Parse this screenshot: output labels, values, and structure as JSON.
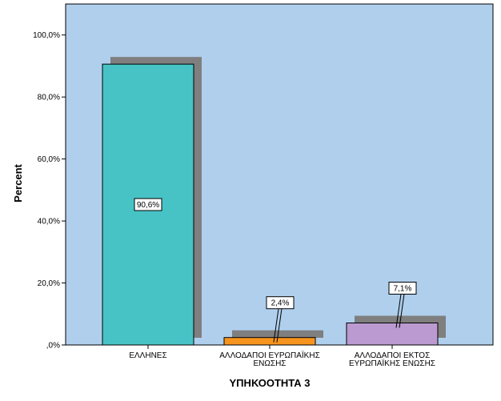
{
  "chart_data": {
    "type": "bar",
    "xlabel": "ΥΠΗΚΟΟΤΗΤΑ 3",
    "ylabel": "Percent",
    "ylim": [
      0,
      110
    ],
    "yticks": [
      0,
      20,
      40,
      60,
      80,
      100
    ],
    "ytick_labels": [
      ",0%",
      "20,0%",
      "40,0%",
      "60,0%",
      "80,0%",
      "100,0%"
    ],
    "categories": [
      [
        "ΕΛΛΗΝΕΣ"
      ],
      [
        "ΑΛΛΟΔΑΠΟΙ ΕΥΡΩΠΑΪΚΗΣ",
        "ΕΝΩΣΗΣ"
      ],
      [
        "ΑΛΛΟΔΑΠΟΙ ΕΚΤΟΣ",
        "ΕΥΡΩΠΑΪΚΗΣ ΕΝΩΣΗΣ"
      ]
    ],
    "values": [
      90.6,
      2.4,
      7.1
    ],
    "data_labels": [
      "90,6%",
      "2,4%",
      "7,1%"
    ],
    "bar_colors": [
      "#47C3C6",
      "#F7941D",
      "#BA9AD0"
    ],
    "plot_background": "#AFCFED",
    "shadow_color": "#7F7F7F",
    "grid": false,
    "legend": "none"
  }
}
